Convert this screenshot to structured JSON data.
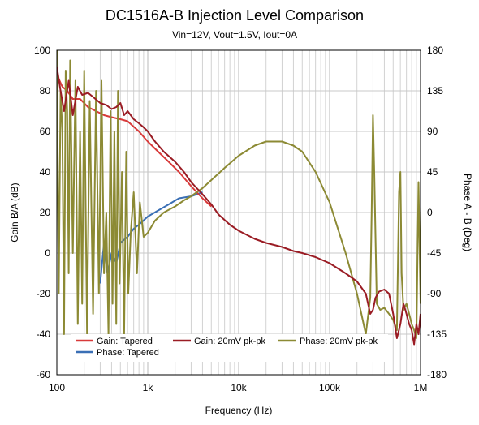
{
  "chart_data": {
    "type": "line",
    "title": "DC1516A-B Injection Level Comparison",
    "subtitle": "Vin=12V, Vout=1.5V, Iout=0A",
    "xlabel": "Frequency (Hz)",
    "ylabel_left": "Gain B/A (dB)",
    "ylabel_right": "Phase A - B (Deg)",
    "xscale": "log",
    "xlim": [
      100,
      1000000
    ],
    "ylim_left": [
      -60,
      100
    ],
    "ylim_right": [
      -180,
      180
    ],
    "x_ticks": [
      {
        "value": 100,
        "label": "100"
      },
      {
        "value": 1000,
        "label": "1k"
      },
      {
        "value": 10000,
        "label": "10k"
      },
      {
        "value": 100000,
        "label": "100k"
      },
      {
        "value": 1000000,
        "label": "1M"
      }
    ],
    "y_ticks_left": [
      "100",
      "80",
      "60",
      "40",
      "20",
      "0",
      "-20",
      "-40",
      "-60"
    ],
    "y_ticks_right": [
      "180",
      "135",
      "90",
      "45",
      "0",
      "-45",
      "-90",
      "-135",
      "-180"
    ],
    "grid": true,
    "legend_position": "bottom-left",
    "series": [
      {
        "name": "Gain: Tapered",
        "axis": "left",
        "color": "#d83a3a",
        "x": [
          100,
          115,
          130,
          150,
          180,
          220,
          270,
          330,
          400,
          500,
          600,
          800,
          1000,
          1300,
          1700,
          2200,
          3000,
          4000,
          5000
        ],
        "y": [
          88,
          82,
          80,
          76,
          76,
          72,
          70,
          68,
          67,
          66,
          65,
          60,
          55,
          50,
          45,
          40,
          33,
          27,
          23
        ]
      },
      {
        "name": "Phase: Tapered",
        "axis": "left",
        "color": "#3a6fb5",
        "x": [
          300,
          330,
          360,
          400,
          450,
          500,
          600,
          700,
          800,
          1000,
          1300,
          1700,
          2200,
          3000,
          4000
        ],
        "y": [
          -15,
          5,
          -10,
          0,
          -5,
          5,
          8,
          12,
          14,
          18,
          21,
          24,
          27,
          28,
          30
        ]
      },
      {
        "name": "Gain: 20mV pk-pk",
        "axis": "left",
        "color": "#9a1c24",
        "x": [
          100,
          110,
          120,
          135,
          150,
          170,
          190,
          220,
          250,
          300,
          350,
          400,
          450,
          500,
          550,
          600,
          700,
          800,
          900,
          1000,
          1200,
          1500,
          2000,
          2500,
          3000,
          4000,
          5000,
          6000,
          8000,
          10000,
          15000,
          20000,
          30000,
          40000,
          50000,
          70000,
          100000,
          150000,
          200000,
          250000,
          280000,
          300000,
          320000,
          350000,
          400000,
          450000,
          500000,
          550000,
          600000,
          650000,
          700000,
          750000,
          800000,
          850000,
          900000,
          950000,
          1000000
        ],
        "y": [
          92,
          80,
          70,
          85,
          68,
          82,
          78,
          79,
          77,
          74,
          73,
          71,
          72,
          74,
          68,
          70,
          66,
          64,
          62,
          60,
          55,
          50,
          45,
          40,
          35,
          29,
          24,
          19,
          14,
          11,
          7,
          5,
          3,
          1,
          0,
          -2,
          -5,
          -10,
          -14,
          -20,
          -30,
          -28,
          -22,
          -19,
          -18,
          -20,
          -30,
          -42,
          -35,
          -25,
          -30,
          -35,
          -38,
          -45,
          -35,
          -40,
          -30
        ]
      },
      {
        "name": "Phase: 20mV pk-pk",
        "axis": "left",
        "color": "#8c8a34",
        "x": [
          100,
          105,
          110,
          115,
          120,
          125,
          130,
          135,
          140,
          150,
          160,
          170,
          180,
          190,
          200,
          215,
          230,
          250,
          270,
          290,
          310,
          330,
          350,
          370,
          390,
          410,
          430,
          450,
          470,
          490,
          520,
          550,
          580,
          610,
          650,
          700,
          760,
          820,
          900,
          1000,
          1200,
          1500,
          2000,
          2500,
          3000,
          4000,
          5000,
          7000,
          10000,
          15000,
          20000,
          30000,
          40000,
          50000,
          70000,
          100000,
          150000,
          200000,
          250000,
          280000,
          290000,
          300000,
          310000,
          330000,
          360000,
          400000,
          450000,
          500000,
          550000,
          580000,
          600000,
          620000,
          650000,
          700000,
          750000,
          800000,
          850000,
          900000,
          950000,
          1000000
        ],
        "y": [
          100,
          -20,
          80,
          60,
          -40,
          90,
          70,
          -10,
          95,
          0,
          85,
          -35,
          60,
          -25,
          90,
          -40,
          75,
          -30,
          80,
          -20,
          85,
          -10,
          20,
          -40,
          70,
          -25,
          60,
          -35,
          80,
          -15,
          40,
          -40,
          50,
          -20,
          10,
          30,
          -10,
          25,
          8,
          10,
          16,
          20,
          23,
          26,
          28,
          32,
          36,
          42,
          48,
          53,
          55,
          55,
          53,
          50,
          40,
          25,
          0,
          -20,
          -40,
          -22,
          20,
          68,
          40,
          -25,
          -28,
          -27,
          -30,
          -33,
          -38,
          30,
          40,
          -10,
          -28,
          -25,
          -30,
          -35,
          -38,
          -42,
          35,
          -25
        ]
      }
    ]
  }
}
